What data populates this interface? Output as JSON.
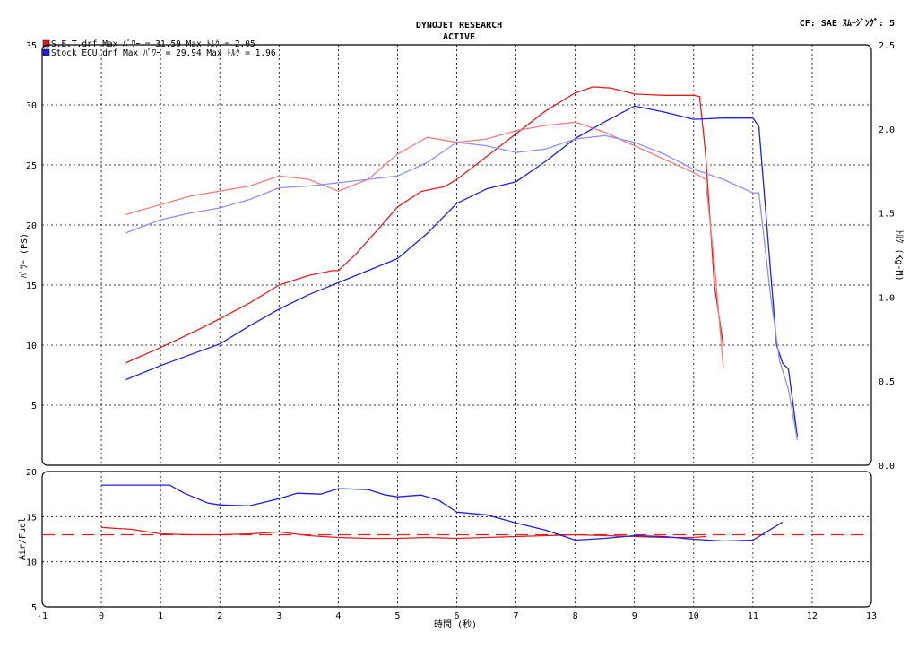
{
  "header": {
    "title_line1": "DYNOJET  RESEARCH",
    "title_line2": "ACTIVE",
    "top_right": "CF: SAE  ｽﾑｰｼﾞﾝｸﾞ: 5"
  },
  "legend": [
    {
      "text": "S.E.T.drf Max ﾊﾟﾜｰ = 31.59     Max ﾄﾙｸ = 2.05",
      "color": "#e02020"
    },
    {
      "text": "Stock ECU.drf Max ﾊﾟﾜｰ = 29.94     Max ﾄﾙｸ = 1.96",
      "color": "#2020e0"
    }
  ],
  "chart_data": [
    {
      "type": "line",
      "ylabel_left": "ﾊﾟﾜｰ (PS)",
      "ylabel_right": "ﾄﾙｸ (Kg-M)",
      "xlabel": "時間 (秒)",
      "xlim": [
        -1,
        13
      ],
      "ylim_left": [
        0,
        35
      ],
      "ylim_right": [
        0,
        2.5
      ],
      "x_ticks": [
        -1,
        0,
        1,
        2,
        3,
        4,
        5,
        6,
        7,
        8,
        9,
        10,
        11,
        12,
        13
      ],
      "y_ticks_left": [
        5,
        10,
        15,
        20,
        25,
        30,
        35
      ],
      "y_ticks_right": [
        "0.0",
        "0.5",
        "1.0",
        "1.5",
        "2.0",
        "2.5"
      ],
      "grid": true,
      "series": [
        {
          "name": "S.E.T.drf",
          "measure": "power",
          "axis": "left",
          "color": "#e02020",
          "x": [
            0.4,
            1.0,
            1.6,
            2.0,
            2.5,
            3.0,
            3.5,
            3.9,
            4.0,
            4.3,
            4.7,
            5.0,
            5.4,
            5.8,
            6.0,
            6.4,
            7.0,
            7.5,
            8.0,
            8.3,
            8.6,
            9.0,
            9.5,
            10.0,
            10.1,
            10.2,
            10.35,
            10.5
          ],
          "y": [
            8.5,
            9.8,
            11.2,
            12.2,
            13.5,
            15.0,
            15.8,
            16.2,
            16.2,
            17.6,
            19.8,
            21.5,
            22.8,
            23.2,
            23.8,
            25.3,
            27.6,
            29.5,
            31.0,
            31.5,
            31.4,
            30.9,
            30.8,
            30.8,
            30.7,
            26.0,
            15.0,
            10.0
          ]
        },
        {
          "name": "Stock ECU.drf",
          "measure": "power",
          "axis": "left",
          "color": "#2020e0",
          "x": [
            0.4,
            1.0,
            1.5,
            2.0,
            2.5,
            3.0,
            3.5,
            4.0,
            4.5,
            5.0,
            5.5,
            6.0,
            6.5,
            7.0,
            7.5,
            8.0,
            8.5,
            9.0,
            9.5,
            10.0,
            10.5,
            11.0,
            11.1,
            11.3,
            11.4,
            11.5,
            11.6,
            11.75
          ],
          "y": [
            7.1,
            8.3,
            9.2,
            10.1,
            11.6,
            13.0,
            14.2,
            15.2,
            16.2,
            17.2,
            19.3,
            21.8,
            23.0,
            23.6,
            25.3,
            27.2,
            28.6,
            29.9,
            29.4,
            28.8,
            28.9,
            28.9,
            28.2,
            16.0,
            10.0,
            8.5,
            8.0,
            2.4
          ]
        },
        {
          "name": "S.E.T.drf",
          "measure": "torque",
          "axis": "right",
          "color": "#f08080",
          "x": [
            0.4,
            1.0,
            1.5,
            2.0,
            2.5,
            3.0,
            3.5,
            4.0,
            4.5,
            5.0,
            5.5,
            6.0,
            6.5,
            7.0,
            7.5,
            8.0,
            8.5,
            9.0,
            9.5,
            10.0,
            10.2,
            10.35,
            10.5
          ],
          "y": [
            1.49,
            1.55,
            1.6,
            1.63,
            1.66,
            1.72,
            1.7,
            1.63,
            1.7,
            1.85,
            1.95,
            1.92,
            1.94,
            1.99,
            2.02,
            2.04,
            1.98,
            1.9,
            1.82,
            1.74,
            1.7,
            1.2,
            0.58
          ]
        },
        {
          "name": "Stock ECU.drf",
          "measure": "torque",
          "axis": "right",
          "color": "#9090f0",
          "x": [
            0.4,
            1.0,
            1.5,
            2.0,
            2.5,
            3.0,
            3.5,
            4.0,
            4.5,
            5.0,
            5.5,
            6.0,
            6.5,
            7.0,
            7.5,
            8.0,
            8.5,
            9.0,
            9.5,
            10.0,
            10.5,
            11.0,
            11.1,
            11.3,
            11.45,
            11.6,
            11.75
          ],
          "y": [
            1.38,
            1.46,
            1.5,
            1.53,
            1.58,
            1.65,
            1.66,
            1.68,
            1.7,
            1.72,
            1.8,
            1.92,
            1.9,
            1.86,
            1.88,
            1.94,
            1.96,
            1.92,
            1.85,
            1.76,
            1.7,
            1.62,
            1.62,
            1.0,
            0.62,
            0.45,
            0.15
          ]
        }
      ]
    },
    {
      "type": "line",
      "ylabel": "Air/Fuel",
      "xlim": [
        -1,
        13
      ],
      "ylim": [
        5,
        20
      ],
      "y_ticks": [
        5,
        10,
        15,
        20
      ],
      "reference_line": 13.0,
      "reference_color": "#e02020",
      "grid": true,
      "series": [
        {
          "name": "S.E.T.drf",
          "color": "#e02020",
          "x": [
            0.0,
            0.5,
            1.0,
            1.5,
            2.0,
            2.5,
            3.0,
            3.5,
            4.0,
            4.5,
            5.0,
            5.5,
            6.0,
            6.5,
            7.0,
            7.5,
            8.0,
            8.5,
            9.0,
            9.5,
            10.0,
            10.2
          ],
          "y": [
            13.8,
            13.6,
            13.1,
            13.0,
            13.0,
            13.1,
            13.3,
            12.9,
            12.7,
            12.6,
            12.6,
            12.7,
            12.6,
            12.7,
            12.8,
            12.9,
            13.0,
            12.9,
            12.8,
            12.7,
            12.7,
            12.8
          ]
        },
        {
          "name": "Stock ECU.drf",
          "color": "#2020e0",
          "x": [
            0.0,
            0.5,
            1.15,
            1.4,
            1.8,
            2.0,
            2.5,
            3.0,
            3.3,
            3.7,
            4.0,
            4.5,
            4.8,
            5.0,
            5.4,
            5.7,
            6.0,
            6.5,
            7.0,
            7.5,
            8.0,
            8.5,
            9.0,
            9.5,
            10.0,
            10.5,
            11.0,
            11.5
          ],
          "y": [
            18.5,
            18.5,
            18.5,
            17.6,
            16.5,
            16.3,
            16.2,
            17.0,
            17.6,
            17.5,
            18.1,
            18.0,
            17.4,
            17.2,
            17.4,
            16.8,
            15.5,
            15.2,
            14.3,
            13.5,
            12.4,
            12.6,
            12.9,
            12.8,
            12.5,
            12.3,
            12.4,
            14.4
          ]
        }
      ]
    }
  ]
}
